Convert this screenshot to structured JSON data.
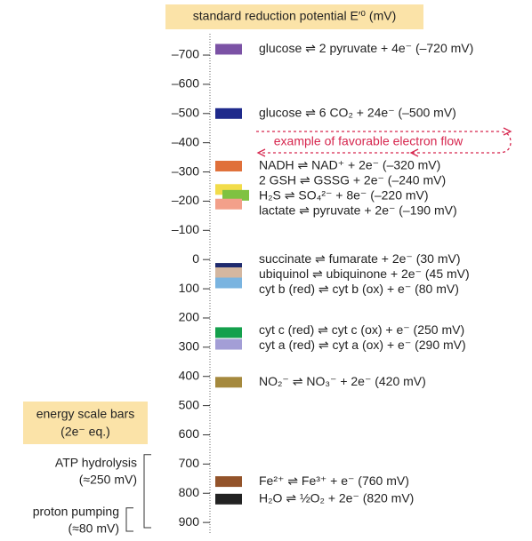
{
  "header": {
    "title": "standard reduction potential E′⁰ (mV)"
  },
  "axis": {
    "ylim": [
      -770,
      930
    ],
    "yticks": [
      {
        "value": -700,
        "label": "–700"
      },
      {
        "value": -600,
        "label": "–600"
      },
      {
        "value": -500,
        "label": "–500"
      },
      {
        "value": -400,
        "label": "–400"
      },
      {
        "value": -300,
        "label": "–300"
      },
      {
        "value": -200,
        "label": "–200"
      },
      {
        "value": -100,
        "label": "–100"
      },
      0,
      100,
      200,
      300,
      400,
      500,
      600,
      700,
      800,
      900
    ]
  },
  "reactions": [
    {
      "label": "glucose ⇌ 2 pyruvate + 4e⁻ (–720 mV)",
      "value": -720,
      "color": "#7b52a5"
    },
    {
      "label": "glucose ⇌ 6 CO₂ + 24e⁻ (–500 mV)",
      "value": -500,
      "color": "#1f2a8c"
    },
    {
      "label": "NADH ⇌ NAD⁺ + 2e⁻ (–320 mV)",
      "value": -320,
      "color": "#e0703a"
    },
    {
      "label": "2 GSH ⇌ GSSG + 2e⁻ (–240 mV)",
      "value": -240,
      "color": "#f2dc4a"
    },
    {
      "label": "H₂S ⇌ SO₄²⁻ + 8e⁻ (–220 mV)",
      "value": -220,
      "color": "#7fc241"
    },
    {
      "label": "lactate ⇌ pyruvate + 2e⁻ (–190 mV)",
      "value": -190,
      "color": "#f3a08a"
    },
    {
      "label": "succinate ⇌ fumarate + 2e⁻ (30 mV)",
      "value": 30,
      "color": "#1f2a6e"
    },
    {
      "label": "ubiquinol ⇌ ubiquinone + 2e⁻ (45 mV)",
      "value": 45,
      "color": "#d4b7a0"
    },
    {
      "label": "cyt b (red) ⇌ cyt b (ox) + e⁻ (80 mV)",
      "value": 80,
      "color": "#7ab4e0"
    },
    {
      "label": "cyt c (red) ⇌ cyt c (ox) + e⁻ (250 mV)",
      "value": 250,
      "color": "#14a04c"
    },
    {
      "label": "cyt a (red) ⇌ cyt a (ox) + e⁻ (290 mV)",
      "value": 290,
      "color": "#a39ed6"
    },
    {
      "label": "NO₂⁻ ⇌ NO₃⁻ + 2e⁻ (420 mV)",
      "value": 420,
      "color": "#a5893d"
    },
    {
      "label": "Fe²⁺ ⇌ Fe³⁺ + e⁻ (760 mV)",
      "value": 760,
      "color": "#93532a"
    },
    {
      "label": "H₂O ⇌ ½O₂ + 2e⁻ (820 mV)",
      "value": 820,
      "color": "#222222"
    }
  ],
  "annotation": "example of favorable electron flow",
  "energy_scale": {
    "title": [
      "energy scale bars",
      "(2e⁻ eq.)"
    ],
    "bars": [
      {
        "name": "ATP hydrolysis",
        "label": "(≈250 mV)",
        "value": 250
      },
      {
        "name": "proton pumping",
        "label": "(≈80 mV)",
        "value": 80
      }
    ]
  }
}
